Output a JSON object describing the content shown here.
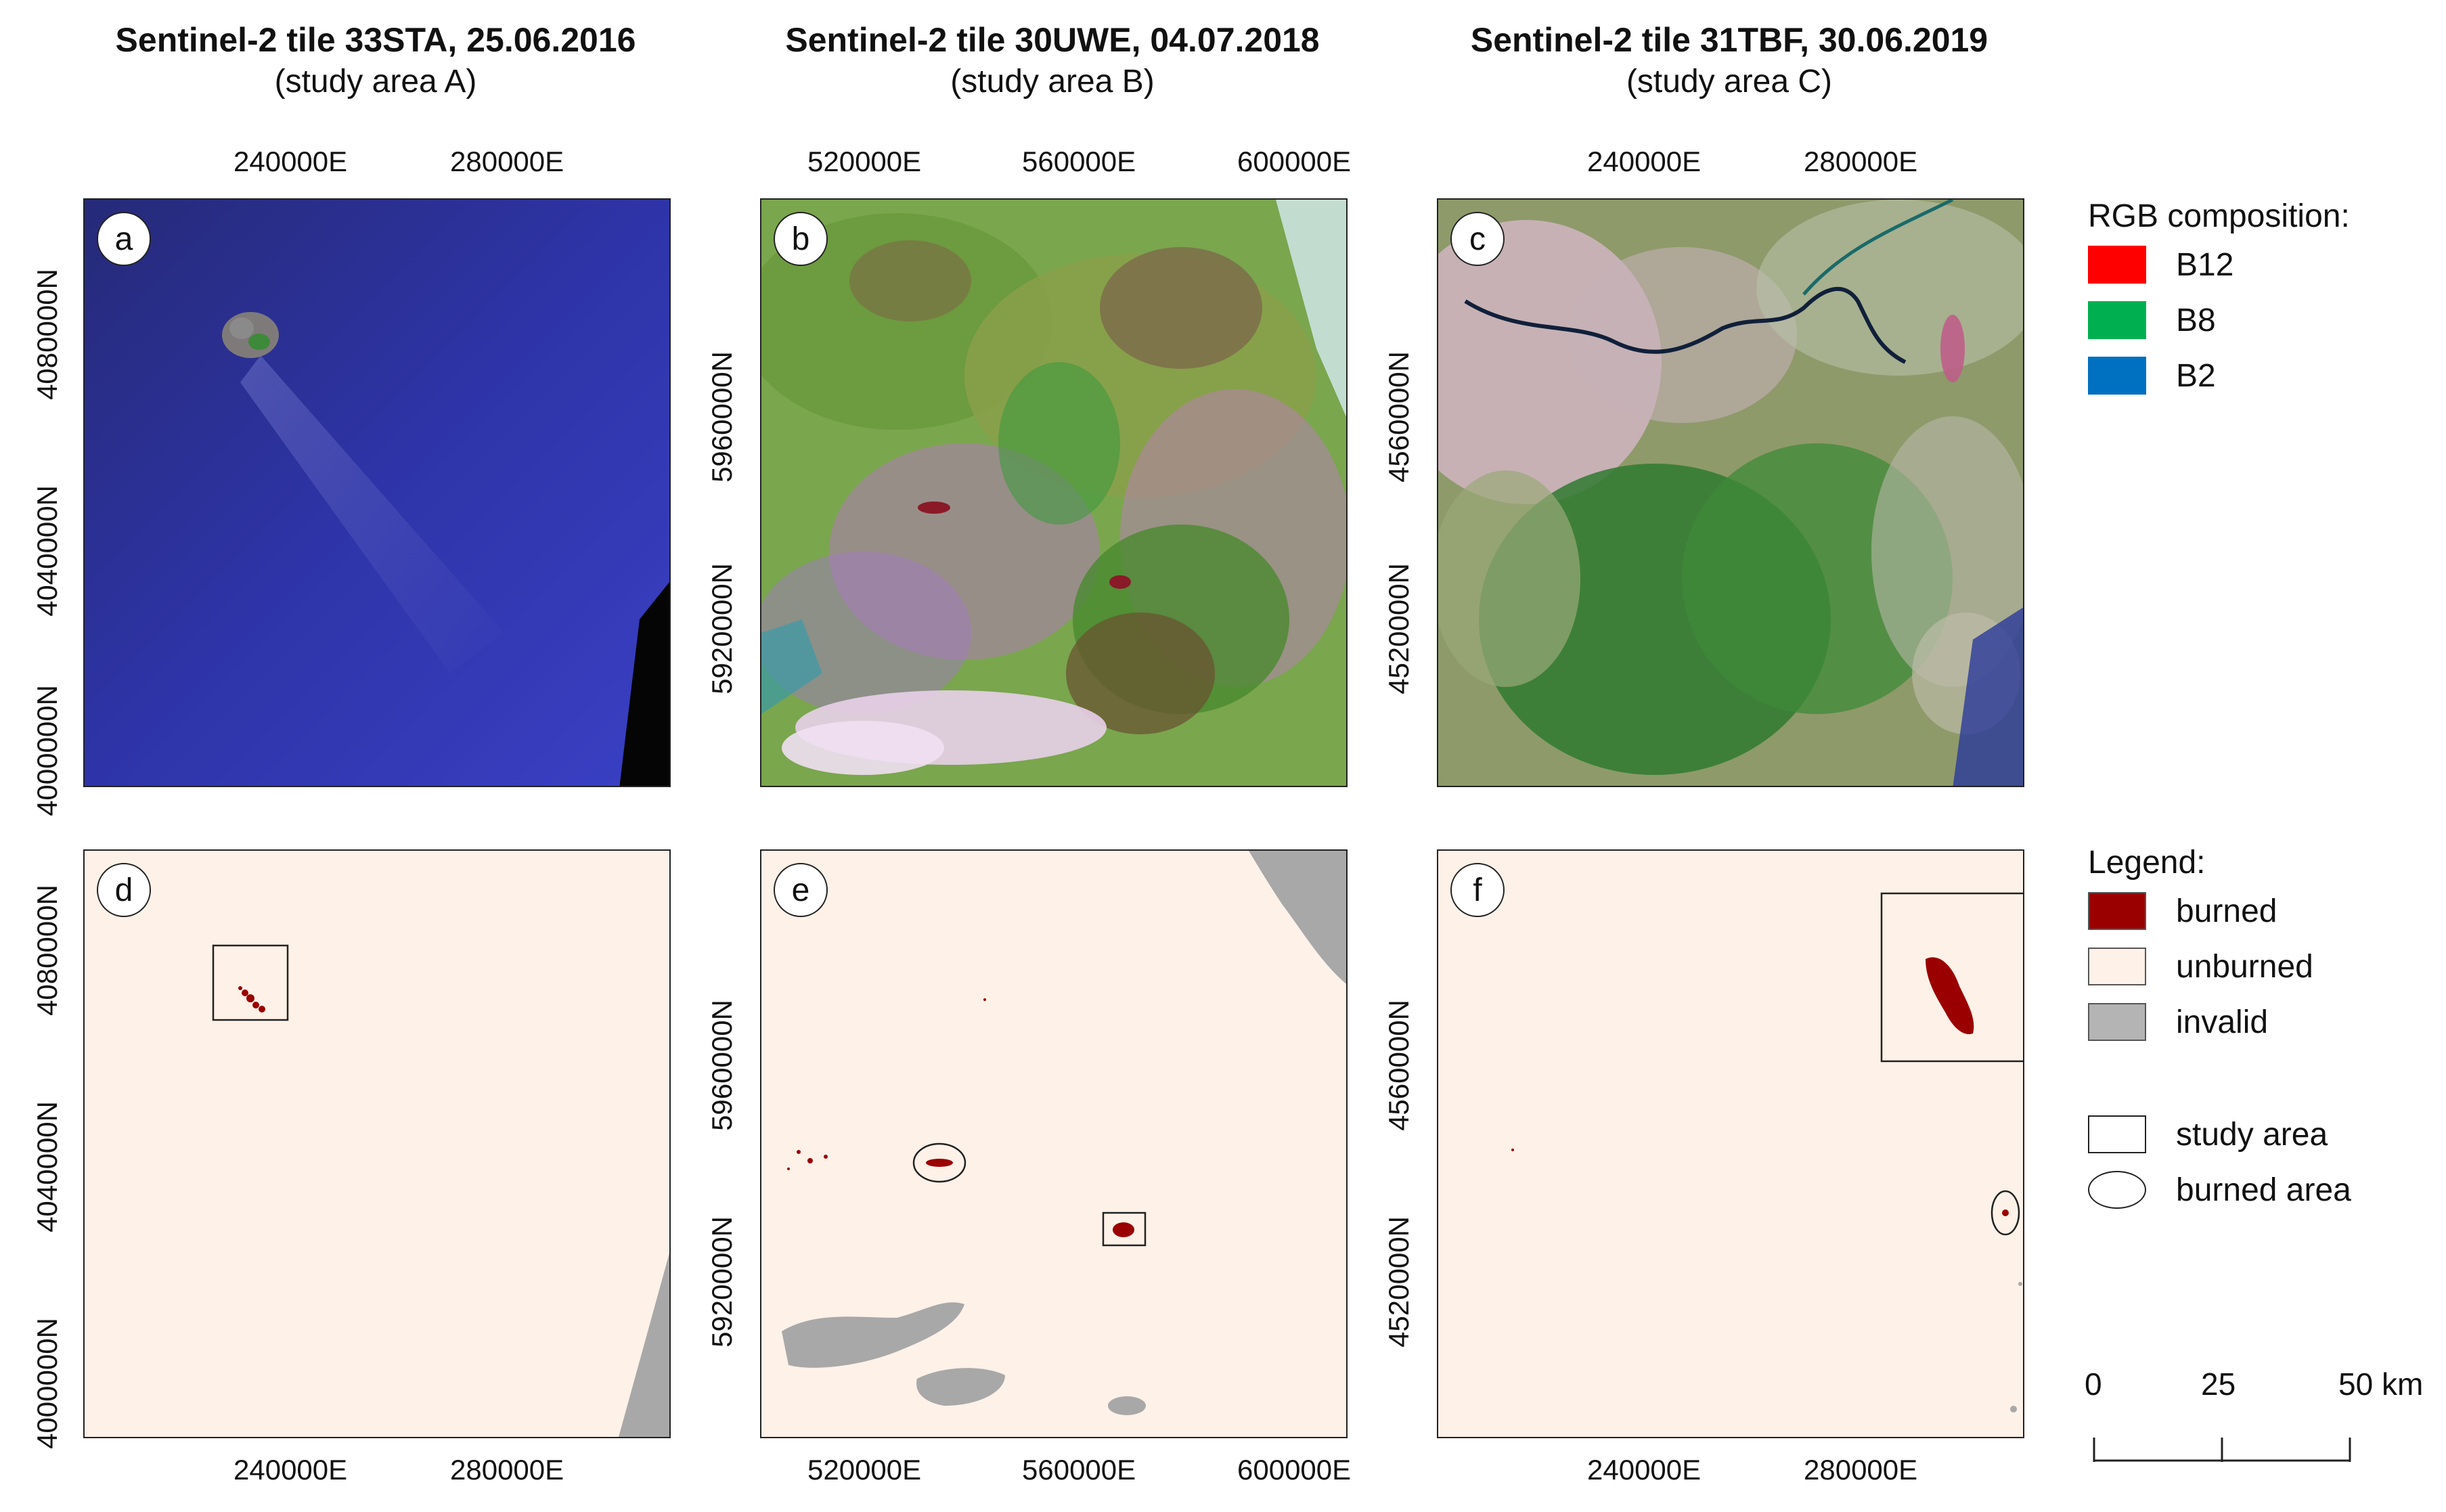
{
  "columns": [
    {
      "title": "Sentinel-2 tile 33STA, 25.06.2016",
      "subtitle": "(study area A)"
    },
    {
      "title": "Sentinel-2 tile 30UWE, 04.07.2018",
      "subtitle": "(study area B)"
    },
    {
      "title": "Sentinel-2 tile 31TBF, 30.06.2019",
      "subtitle": "(study area C)"
    }
  ],
  "panels": {
    "a": {
      "label": "a",
      "x_ticks": [
        "240000E",
        "280000E"
      ],
      "y_ticks": [
        "4080000N",
        "4040000N",
        "4000000N"
      ]
    },
    "b": {
      "label": "b",
      "x_ticks": [
        "520000E",
        "560000E",
        "600000E"
      ],
      "y_ticks": [
        "5960000N",
        "5920000N"
      ]
    },
    "c": {
      "label": "c",
      "x_ticks": [
        "240000E",
        "280000E"
      ],
      "y_ticks": [
        "4560000N",
        "4520000N"
      ]
    },
    "d": {
      "label": "d",
      "x_ticks": [
        "240000E",
        "280000E"
      ],
      "y_ticks": [
        "4080000N",
        "4040000N",
        "4000000N"
      ]
    },
    "e": {
      "label": "e",
      "x_ticks": [
        "520000E",
        "560000E",
        "600000E"
      ],
      "y_ticks": [
        "5960000N",
        "5920000N"
      ]
    },
    "f": {
      "label": "f",
      "x_ticks": [
        "240000E",
        "280000E"
      ],
      "y_ticks": [
        "4560000N",
        "4520000N"
      ]
    }
  },
  "rgb_legend": {
    "title": "RGB composition:",
    "items": [
      {
        "label": "B12",
        "color": "#ff0000"
      },
      {
        "label": "B8",
        "color": "#00b050"
      },
      {
        "label": "B2",
        "color": "#0070c0"
      }
    ]
  },
  "class_legend": {
    "title": "Legend:",
    "items": [
      {
        "label": "burned",
        "color": "#9b0000"
      },
      {
        "label": "unburned",
        "color": "#fdf1e8"
      },
      {
        "label": "invalid",
        "color": "#b4b4b4"
      },
      {
        "label": "study area",
        "shape": "rectangle"
      },
      {
        "label": "burned area",
        "shape": "ellipse"
      }
    ]
  },
  "scale_bar": {
    "labels": [
      "0",
      "25",
      "50 km"
    ]
  }
}
